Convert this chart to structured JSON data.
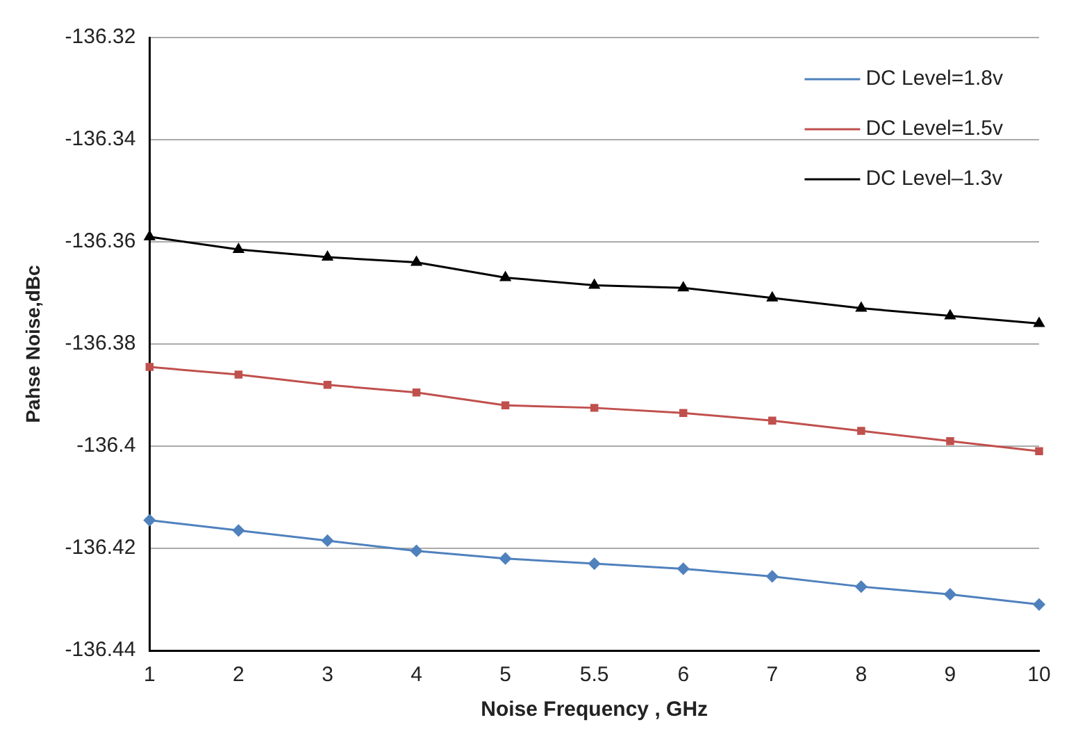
{
  "chart_data": {
    "type": "line",
    "xlabel": "Noise Frequency , GHz",
    "ylabel": "Pahse Noise,dBc",
    "categories": [
      "1",
      "2",
      "3",
      "4",
      "5",
      "5.5",
      "6",
      "7",
      "8",
      "9",
      "10"
    ],
    "series": [
      {
        "name": "DC Level=1.8v",
        "color": "#4f81bd",
        "marker": "diamond",
        "values": [
          -136.4145,
          -136.4165,
          -136.4185,
          -136.4205,
          -136.422,
          -136.423,
          -136.424,
          -136.4255,
          -136.4275,
          -136.429,
          -136.431
        ]
      },
      {
        "name": "DC Level=1.5v",
        "color": "#c0504d",
        "marker": "square",
        "values": [
          -136.3845,
          -136.386,
          -136.388,
          -136.3895,
          -136.392,
          -136.3925,
          -136.3935,
          -136.395,
          -136.397,
          -136.399,
          -136.401
        ]
      },
      {
        "name": "DC Level–1.3v",
        "color": "#000000",
        "marker": "triangle",
        "values": [
          -136.359,
          -136.3615,
          -136.363,
          -136.364,
          -136.367,
          -136.3685,
          -136.369,
          -136.371,
          -136.373,
          -136.3745,
          -136.376
        ]
      }
    ],
    "ylim": [
      -136.44,
      -136.32
    ],
    "yticks": [
      -136.44,
      -136.42,
      -136.4,
      -136.38,
      -136.36,
      -136.34,
      -136.32
    ],
    "grid": "y",
    "legend": "top right",
    "line_style": "solid"
  }
}
